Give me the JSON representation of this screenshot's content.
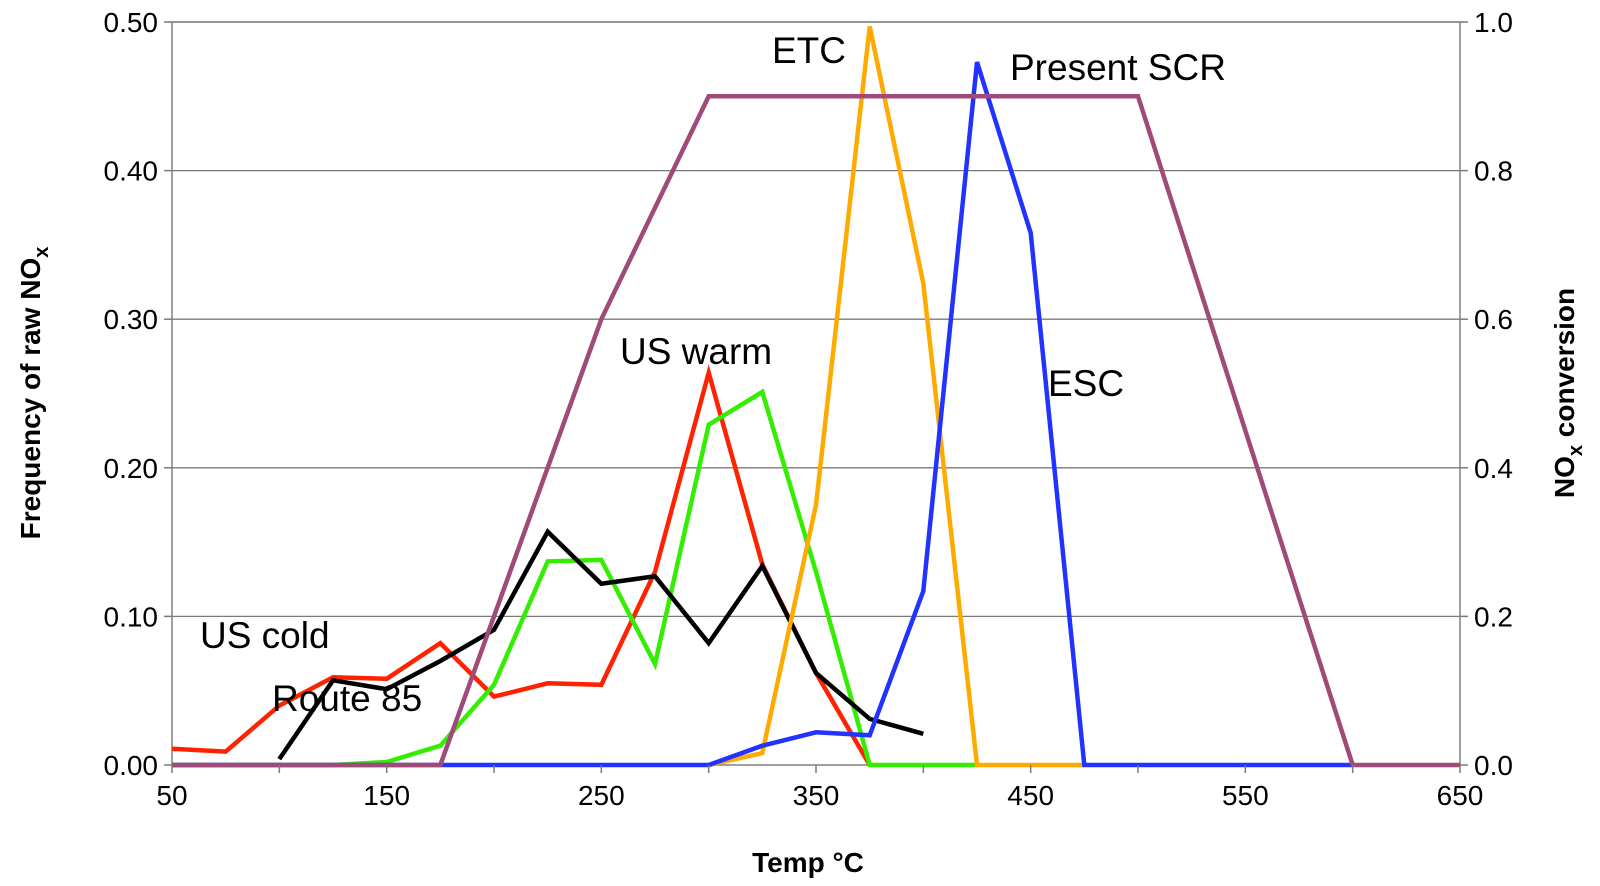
{
  "chart_data": {
    "type": "line",
    "xlabel": "Temp °C",
    "ylabel_left": "Frequency of raw NOx",
    "ylabel_left_parts": [
      "Frequency of raw NO",
      "x"
    ],
    "ylabel_right": "NOx conversion",
    "ylabel_right_parts": [
      "NO",
      "x",
      " conversion"
    ],
    "xlim": [
      50,
      650
    ],
    "ylim_left": [
      0,
      0.5
    ],
    "ylim_right": [
      0,
      1.0
    ],
    "x_ticks": [
      "50",
      "150",
      "250",
      "350",
      "450",
      "550",
      "650"
    ],
    "y_left_ticks": [
      "0.00",
      "0.10",
      "0.20",
      "0.30",
      "0.40",
      "0.50"
    ],
    "y_right_ticks": [
      "0.0",
      "0.2",
      "0.4",
      "0.6",
      "0.8",
      "1.0"
    ],
    "grid": "horizontal",
    "series": [
      {
        "name": "US cold",
        "color": "#ff2200",
        "axis": "left",
        "x": [
          50,
          75,
          100,
          125,
          150,
          175,
          200,
          225,
          250,
          275,
          300,
          325,
          350,
          375
        ],
        "y": [
          0.011,
          0.009,
          0.04,
          0.059,
          0.058,
          0.082,
          0.046,
          0.055,
          0.054,
          0.13,
          0.264,
          0.135,
          0.062,
          0.0
        ]
      },
      {
        "name": "US warm",
        "color": "#33ee00",
        "axis": "left",
        "x": [
          50,
          75,
          100,
          125,
          150,
          175,
          200,
          225,
          250,
          275,
          300,
          325,
          350,
          375,
          400,
          425
        ],
        "y": [
          0.0,
          0.0,
          0.0,
          0.0,
          0.002,
          0.013,
          0.054,
          0.137,
          0.138,
          0.068,
          0.229,
          0.251,
          0.13,
          0.0,
          0.0,
          0.0
        ]
      },
      {
        "name": "Route 85",
        "color": "#000000",
        "axis": "left",
        "x": [
          100,
          125,
          150,
          175,
          200,
          225,
          250,
          275,
          300,
          325,
          350,
          375,
          400
        ],
        "y": [
          0.004,
          0.057,
          0.051,
          0.07,
          0.091,
          0.157,
          0.122,
          0.127,
          0.082,
          0.134,
          0.062,
          0.031,
          0.021
        ]
      },
      {
        "name": "ETC",
        "color": "#ffaa00",
        "axis": "left",
        "x": [
          300,
          325,
          350,
          375,
          400,
          425,
          450,
          475
        ],
        "y": [
          0.0,
          0.008,
          0.175,
          0.497,
          0.324,
          0.0,
          0.0,
          0.0
        ]
      },
      {
        "name": "ESC",
        "color": "#2233ff",
        "axis": "left",
        "x": [
          50,
          75,
          100,
          125,
          150,
          175,
          200,
          225,
          250,
          275,
          300,
          325,
          350,
          375,
          400,
          425,
          450,
          475,
          500,
          525,
          550,
          575,
          600
        ],
        "y": [
          0.0,
          0.0,
          0.0,
          0.0,
          0.0,
          0.0,
          0.0,
          0.0,
          0.0,
          0.0,
          0.0,
          0.013,
          0.022,
          0.02,
          0.117,
          0.473,
          0.358,
          0.0,
          0.0,
          0.0,
          0.0,
          0.0,
          0.0
        ]
      },
      {
        "name": "Present SCR",
        "color": "#a04a7a",
        "axis": "right",
        "x": [
          50,
          175,
          250,
          300,
          400,
          500,
          600,
          650
        ],
        "y": [
          0.0,
          0.0,
          0.6,
          0.9,
          0.9,
          0.9,
          0.0,
          0.0
        ]
      }
    ],
    "annotations": [
      {
        "text": "US cold",
        "series": "US cold"
      },
      {
        "text": "Route 85",
        "series": "Route 85"
      },
      {
        "text": "US warm",
        "series": "US warm"
      },
      {
        "text": "ETC",
        "series": "ETC"
      },
      {
        "text": "ESC",
        "series": "ESC"
      },
      {
        "text": "Present SCR",
        "series": "Present SCR"
      }
    ]
  }
}
